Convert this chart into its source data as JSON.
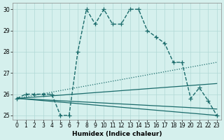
{
  "xlabel": "Humidex (Indice chaleur)",
  "bg_color": "#d5f0ed",
  "line_color": "#1a6b6b",
  "grid_color": "#b0d8d5",
  "xlim": [
    -0.5,
    23.5
  ],
  "ylim": [
    24.8,
    30.3
  ],
  "yticks": [
    25,
    26,
    27,
    28,
    29,
    30
  ],
  "xticks": [
    0,
    1,
    2,
    3,
    4,
    5,
    6,
    7,
    8,
    9,
    10,
    11,
    12,
    13,
    14,
    15,
    16,
    17,
    18,
    19,
    20,
    21,
    22,
    23
  ],
  "series": [
    {
      "x": [
        0,
        1,
        2,
        3,
        4,
        5,
        6,
        7,
        8,
        9,
        10,
        11,
        12,
        13,
        14,
        15,
        16,
        17,
        18,
        19,
        20,
        21,
        22,
        23
      ],
      "y": [
        25.8,
        26.0,
        26.0,
        26.0,
        26.0,
        25.0,
        25.0,
        28.0,
        30.0,
        29.3,
        30.0,
        29.3,
        29.3,
        30.0,
        30.0,
        29.0,
        28.7,
        28.4,
        27.5,
        27.5,
        25.8,
        26.3,
        25.7,
        25.0
      ],
      "style": "--",
      "marker": "+",
      "lw": 1.0,
      "ms": 4
    },
    {
      "x": [
        0,
        23
      ],
      "y": [
        25.8,
        27.5
      ],
      "style": ":",
      "marker": null,
      "lw": 0.9,
      "ms": 0
    },
    {
      "x": [
        0,
        23
      ],
      "y": [
        25.8,
        26.5
      ],
      "style": "-",
      "marker": null,
      "lw": 0.9,
      "ms": 0
    },
    {
      "x": [
        0,
        23
      ],
      "y": [
        25.8,
        25.0
      ],
      "style": "-",
      "marker": null,
      "lw": 0.9,
      "ms": 0
    },
    {
      "x": [
        0,
        23
      ],
      "y": [
        25.8,
        25.3
      ],
      "style": "-",
      "marker": null,
      "lw": 0.9,
      "ms": 0
    }
  ]
}
